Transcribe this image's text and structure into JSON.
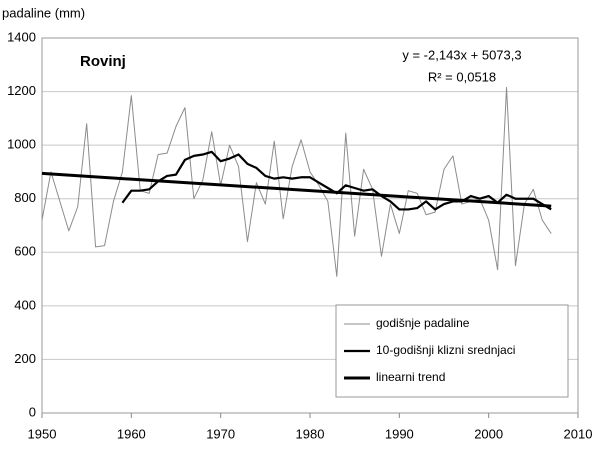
{
  "chart_data": {
    "type": "line",
    "y_label": "padaline (mm)",
    "annotations": [
      "Rovinj",
      "y = -2,143x + 5073,3",
      "R² = 0,0518"
    ],
    "xlim": [
      1950,
      2010
    ],
    "xticks": [
      1950,
      1960,
      1970,
      1980,
      1990,
      2000,
      2010
    ],
    "ylim": [
      0,
      1400
    ],
    "yticks": [
      0,
      200,
      400,
      600,
      800,
      1000,
      1200,
      1400
    ],
    "grid": true,
    "legend": "lower right",
    "series": [
      {
        "name": "godišnje padaline",
        "color": "#8c8c8c",
        "x": [
          1950,
          1951,
          1952,
          1953,
          1954,
          1955,
          1956,
          1957,
          1958,
          1959,
          1960,
          1961,
          1962,
          1963,
          1964,
          1965,
          1966,
          1967,
          1968,
          1969,
          1970,
          1971,
          1972,
          1973,
          1974,
          1975,
          1976,
          1977,
          1978,
          1979,
          1980,
          1981,
          1982,
          1983,
          1984,
          1985,
          1986,
          1987,
          1988,
          1989,
          1990,
          1991,
          1992,
          1993,
          1994,
          1995,
          1996,
          1997,
          1998,
          1999,
          2000,
          2001,
          2002,
          2003,
          2004,
          2005,
          2006,
          2007
        ],
        "values": [
          720,
          900,
          790,
          680,
          770,
          1080,
          620,
          625,
          790,
          900,
          1185,
          830,
          820,
          965,
          970,
          1070,
          1140,
          800,
          870,
          1050,
          850,
          1000,
          920,
          640,
          860,
          780,
          1015,
          725,
          920,
          1020,
          900,
          850,
          790,
          510,
          1045,
          660,
          910,
          835,
          585,
          780,
          670,
          830,
          820,
          740,
          750,
          910,
          960,
          780,
          790,
          800,
          720,
          535,
          1215,
          550,
          780,
          835,
          720,
          670
        ]
      },
      {
        "name": "10-godišnji klizni srednjaci",
        "color": "#000000",
        "x": [
          1959,
          1960,
          1961,
          1962,
          1963,
          1964,
          1965,
          1966,
          1967,
          1968,
          1969,
          1970,
          1971,
          1972,
          1973,
          1974,
          1975,
          1976,
          1977,
          1978,
          1979,
          1980,
          1981,
          1982,
          1983,
          1984,
          1985,
          1986,
          1987,
          1988,
          1989,
          1990,
          1991,
          1992,
          1993,
          1994,
          1995,
          1996,
          1997,
          1998,
          1999,
          2000,
          2001,
          2002,
          2003,
          2004,
          2005,
          2006,
          2007
        ],
        "values": [
          785,
          830,
          830,
          835,
          865,
          885,
          890,
          945,
          960,
          965,
          975,
          940,
          950,
          965,
          930,
          915,
          885,
          875,
          880,
          875,
          880,
          880,
          860,
          840,
          820,
          850,
          840,
          830,
          835,
          810,
          790,
          760,
          760,
          765,
          790,
          760,
          780,
          790,
          790,
          810,
          800,
          810,
          785,
          815,
          800,
          800,
          800,
          780,
          760
        ]
      },
      {
        "name": "linearni trend",
        "color": "#000000",
        "x": [
          1950,
          2007
        ],
        "values": [
          894.45,
          772.3
        ]
      }
    ]
  }
}
